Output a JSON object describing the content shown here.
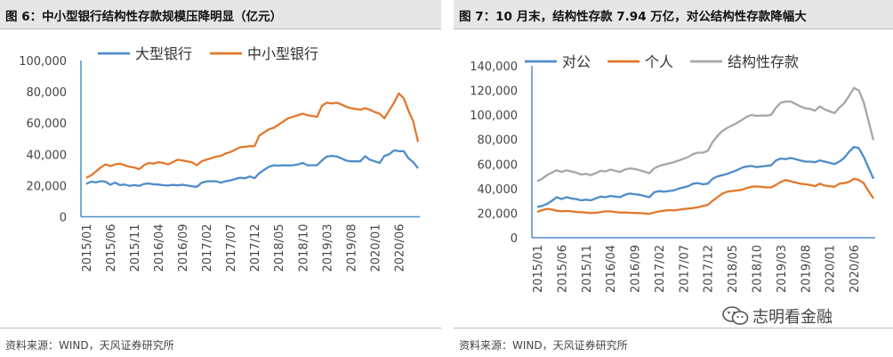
{
  "left_panel": {
    "title": "图 6：中小型银行结构性存款规模压降明显（亿元）",
    "source": "资料来源：WIND，天风证券研究所"
  },
  "right_panel": {
    "title": "图 7：10 月末，结构性存款 7.94 万亿，对公结构性存款降幅大",
    "source": "资料来源：WIND，天风证券研究所"
  },
  "watermark": {
    "text": "志明看金融",
    "icon": "wechat-icon"
  },
  "colors": {
    "blue": "#4f8cc9",
    "orange": "#e2782b",
    "gray": "#a6a6a6",
    "axis": "#4f8cc9"
  },
  "chart_data": [
    {
      "type": "line",
      "title": "",
      "xlabel": "",
      "ylabel": "",
      "ylim": [
        0,
        100000
      ],
      "yticks": [
        0,
        20000,
        40000,
        60000,
        80000,
        100000
      ],
      "ytick_labels": [
        "0",
        "20,000",
        "40,000",
        "60,000",
        "80,000",
        "100,000"
      ],
      "x": [
        "2015/01",
        "2015/02",
        "2015/03",
        "2015/04",
        "2015/05",
        "2015/06",
        "2015/07",
        "2015/08",
        "2015/09",
        "2015/10",
        "2015/11",
        "2015/12",
        "2016/01",
        "2016/02",
        "2016/03",
        "2016/04",
        "2016/05",
        "2016/06",
        "2016/07",
        "2016/08",
        "2016/09",
        "2016/10",
        "2016/11",
        "2016/12",
        "2017/01",
        "2017/02",
        "2017/03",
        "2017/04",
        "2017/05",
        "2017/06",
        "2017/07",
        "2017/08",
        "2017/09",
        "2017/10",
        "2017/11",
        "2017/12",
        "2018/01",
        "2018/02",
        "2018/03",
        "2018/04",
        "2018/05",
        "2018/06",
        "2018/07",
        "2018/08",
        "2018/09",
        "2018/10",
        "2018/11",
        "2018/12",
        "2019/01",
        "2019/02",
        "2019/03",
        "2019/04",
        "2019/05",
        "2019/06",
        "2019/07",
        "2019/08",
        "2019/09",
        "2019/10",
        "2019/11",
        "2019/12",
        "2020/01",
        "2020/02",
        "2020/03",
        "2020/04",
        "2020/05",
        "2020/06",
        "2020/07",
        "2020/08",
        "2020/09",
        "2020/10"
      ],
      "xtick_labels": [
        "2015/01",
        "2015/06",
        "2015/11",
        "2016/04",
        "2016/09",
        "2017/02",
        "2017/07",
        "2017/12",
        "2018/05",
        "2018/10",
        "2019/03",
        "2019/08",
        "2020/01",
        "2020/06"
      ],
      "legend": "top",
      "series": [
        {
          "name": "大型银行",
          "color": "#4f8cc9",
          "values": [
            21000,
            22500,
            22000,
            22800,
            22500,
            20500,
            21800,
            20300,
            20600,
            19800,
            20300,
            19800,
            21000,
            21300,
            20800,
            20600,
            20200,
            20000,
            20400,
            20100,
            20500,
            20000,
            19500,
            19200,
            21800,
            22600,
            22800,
            22700,
            21800,
            22800,
            23300,
            24200,
            25000,
            24600,
            25800,
            24700,
            28000,
            30000,
            32000,
            33000,
            32700,
            33000,
            32800,
            33000,
            33500,
            34500,
            33000,
            33000,
            33000,
            36000,
            38500,
            39000,
            38700,
            37500,
            36000,
            35500,
            35500,
            35500,
            38800,
            36500,
            35500,
            34500,
            39000,
            40000,
            42500,
            42000,
            42000,
            37500,
            35000,
            31000
          ]
        },
        {
          "name": "中小型银行",
          "color": "#e2782b",
          "values": [
            25000,
            26500,
            29000,
            31500,
            33500,
            32500,
            33500,
            34000,
            33000,
            32000,
            31500,
            30500,
            33000,
            34500,
            34000,
            35000,
            34500,
            33500,
            35000,
            36500,
            36000,
            35500,
            34800,
            33000,
            35500,
            36500,
            37500,
            38500,
            39000,
            40500,
            41500,
            43000,
            44500,
            44800,
            45200,
            45200,
            52000,
            54000,
            56000,
            57000,
            59000,
            61000,
            63000,
            64000,
            65000,
            66000,
            65000,
            64500,
            64000,
            71000,
            73000,
            72500,
            73000,
            72000,
            70500,
            69500,
            69000,
            68500,
            69500,
            68500,
            67000,
            66000,
            63000,
            68000,
            73000,
            79000,
            76000,
            68000,
            61000,
            48000
          ]
        }
      ]
    },
    {
      "type": "line",
      "title": "",
      "xlabel": "",
      "ylabel": "",
      "ylim": [
        0,
        140000
      ],
      "yticks": [
        0,
        20000,
        40000,
        60000,
        80000,
        100000,
        120000,
        140000
      ],
      "ytick_labels": [
        "0",
        "20,000",
        "40,000",
        "60,000",
        "80,000",
        "100,000",
        "120,000",
        "140,000"
      ],
      "x": [
        "2015/01",
        "2015/02",
        "2015/03",
        "2015/04",
        "2015/05",
        "2015/06",
        "2015/07",
        "2015/08",
        "2015/09",
        "2015/10",
        "2015/11",
        "2015/12",
        "2016/01",
        "2016/02",
        "2016/03",
        "2016/04",
        "2016/05",
        "2016/06",
        "2016/07",
        "2016/08",
        "2016/09",
        "2016/10",
        "2016/11",
        "2016/12",
        "2017/01",
        "2017/02",
        "2017/03",
        "2017/04",
        "2017/05",
        "2017/06",
        "2017/07",
        "2017/08",
        "2017/09",
        "2017/10",
        "2017/11",
        "2017/12",
        "2018/01",
        "2018/02",
        "2018/03",
        "2018/04",
        "2018/05",
        "2018/06",
        "2018/07",
        "2018/08",
        "2018/09",
        "2018/10",
        "2018/11",
        "2018/12",
        "2019/01",
        "2019/02",
        "2019/03",
        "2019/04",
        "2019/05",
        "2019/06",
        "2019/07",
        "2019/08",
        "2019/09",
        "2019/10",
        "2019/11",
        "2019/12",
        "2020/01",
        "2020/02",
        "2020/03",
        "2020/04",
        "2020/05",
        "2020/06",
        "2020/07",
        "2020/08",
        "2020/09",
        "2020/10"
      ],
      "xtick_labels": [
        "2015/01",
        "2015/06",
        "2015/11",
        "2016/04",
        "2016/09",
        "2017/02",
        "2017/07",
        "2017/12",
        "2018/05",
        "2018/10",
        "2019/03",
        "2019/08",
        "2020/01",
        "2020/06"
      ],
      "legend": "top",
      "series": [
        {
          "name": "对公",
          "color": "#4f8cc9",
          "values": [
            25000,
            26000,
            27500,
            30000,
            33000,
            31500,
            33000,
            32000,
            31500,
            30500,
            31000,
            30500,
            32000,
            33500,
            33000,
            34000,
            33500,
            33000,
            35000,
            36000,
            35500,
            35000,
            34000,
            33000,
            37000,
            38000,
            37500,
            38000,
            38500,
            40000,
            41000,
            42000,
            44000,
            44500,
            43500,
            44000,
            48000,
            50000,
            51000,
            52000,
            53500,
            55000,
            57000,
            58000,
            58500,
            57500,
            58000,
            58500,
            59000,
            63000,
            64500,
            64000,
            65000,
            64000,
            63000,
            62000,
            62000,
            61500,
            63000,
            62000,
            61000,
            60000,
            62000,
            65000,
            70000,
            74000,
            73000,
            66000,
            57000,
            48000
          ]
        },
        {
          "name": "个人",
          "color": "#e2782b",
          "values": [
            21000,
            22500,
            23500,
            23000,
            22000,
            21500,
            21800,
            21500,
            21000,
            20800,
            20500,
            20000,
            20300,
            20800,
            21500,
            21500,
            21000,
            20500,
            20600,
            20300,
            20200,
            20000,
            19800,
            19500,
            20500,
            21500,
            22000,
            22500,
            22300,
            22800,
            23300,
            23800,
            24200,
            24800,
            25800,
            26800,
            30000,
            33000,
            36000,
            37500,
            38000,
            38500,
            39000,
            40500,
            41500,
            41800,
            41500,
            41000,
            41000,
            43000,
            45500,
            47000,
            46000,
            45000,
            44000,
            43500,
            43000,
            42000,
            44000,
            42500,
            42000,
            41500,
            44000,
            44500,
            45500,
            48000,
            47000,
            44500,
            38000,
            32000
          ]
        },
        {
          "name": "结构性存款",
          "color": "#a6a6a6",
          "values": [
            46000,
            48000,
            51000,
            53000,
            55000,
            53500,
            55000,
            54000,
            53000,
            51500,
            52000,
            51000,
            52500,
            54500,
            54000,
            55500,
            54500,
            53500,
            55500,
            56500,
            56000,
            55000,
            53800,
            52500,
            56500,
            58500,
            59500,
            60500,
            61500,
            62800,
            64300,
            65800,
            68200,
            69300,
            69300,
            70800,
            78000,
            83000,
            87000,
            89500,
            91500,
            93500,
            96000,
            98500,
            100000,
            99300,
            99500,
            99500,
            100000,
            106000,
            110000,
            111000,
            111000,
            109000,
            107000,
            105500,
            105000,
            103500,
            107000,
            104500,
            103000,
            101500,
            106000,
            109500,
            115500,
            122000,
            120000,
            110500,
            95000,
            79400
          ]
        }
      ]
    }
  ]
}
